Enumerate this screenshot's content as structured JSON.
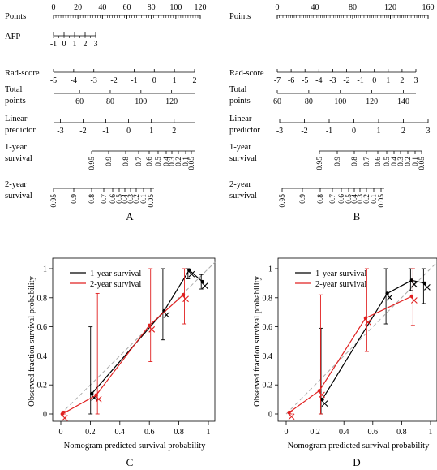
{
  "panel_labels": [
    "A",
    "B",
    "C",
    "D"
  ],
  "chart_data": [
    {
      "panel": "A",
      "type": "nomogram",
      "axes": [
        {
          "label": [
            "Points"
          ],
          "ticks": [
            0,
            20,
            40,
            60,
            80,
            100,
            120
          ]
        },
        {
          "label": [
            "AFP"
          ],
          "ticks": [
            -1,
            0,
            1,
            2,
            3
          ]
        },
        {
          "label": [
            "Rad-score"
          ],
          "ticks": [
            -5,
            -4,
            -3,
            -2,
            -1,
            0,
            1,
            2
          ]
        },
        {
          "label": [
            "Total",
            "points"
          ],
          "ticks": [
            60,
            80,
            100,
            120
          ]
        },
        {
          "label": [
            "Linear",
            "predictor"
          ],
          "ticks": [
            -3,
            -2,
            -1,
            0,
            1,
            2
          ]
        },
        {
          "label": [
            "1-year",
            "survival"
          ],
          "ticks": [
            0.95,
            0.9,
            0.8,
            0.7,
            0.6,
            0.5,
            0.4,
            0.3,
            0.2,
            0.1,
            0.05
          ]
        },
        {
          "label": [
            "2-year",
            "survival"
          ],
          "ticks": [
            0.95,
            0.9,
            0.8,
            0.7,
            0.6,
            0.5,
            0.4,
            0.3,
            0.2,
            0.1,
            0.05
          ]
        }
      ]
    },
    {
      "panel": "B",
      "type": "nomogram",
      "axes": [
        {
          "label": [
            "Points"
          ],
          "ticks": [
            0,
            40,
            80,
            120,
            160
          ]
        },
        {
          "label": [
            "Rad-score"
          ],
          "ticks": [
            -7,
            -6,
            -5,
            -4,
            -3,
            -2,
            -1,
            0,
            1,
            2,
            3
          ]
        },
        {
          "label": [
            "Total",
            "points"
          ],
          "ticks": [
            60,
            80,
            100,
            120,
            140
          ]
        },
        {
          "label": [
            "Linear",
            "predictor"
          ],
          "ticks": [
            -3,
            -2,
            -1,
            0,
            1,
            2,
            3
          ]
        },
        {
          "label": [
            "1-year",
            "survival"
          ],
          "ticks": [
            0.95,
            0.9,
            0.8,
            0.7,
            0.6,
            0.5,
            0.4,
            0.3,
            0.2,
            0.1,
            0.05
          ]
        },
        {
          "label": [
            "2-year",
            "survival"
          ],
          "ticks": [
            0.95,
            0.9,
            0.8,
            0.7,
            0.6,
            0.5,
            0.4,
            0.3,
            0.2,
            0.1,
            0.05
          ]
        }
      ]
    },
    {
      "panel": "C",
      "type": "line",
      "xlabel": "Nomogram predicted survival probability",
      "ylabel": "Observed fraction survival probability",
      "xlim": [
        0,
        1
      ],
      "ylim": [
        0,
        1
      ],
      "xticks": [
        "0",
        "0.2",
        "0.4",
        "0.6",
        "0.8",
        "1"
      ],
      "yticks": [
        "0",
        "0.2",
        "0.4",
        "0.6",
        "0.8",
        "1"
      ],
      "legend": "top-left",
      "series": [
        {
          "name": "1-year survival",
          "color": "#000000",
          "x": [
            0.21,
            0.7,
            0.87,
            0.96
          ],
          "y": [
            0.14,
            0.71,
            0.99,
            0.91
          ],
          "err_low": [
            0.0,
            0.51,
            0.93,
            0.86
          ],
          "err_high": [
            0.6,
            1.0,
            1.0,
            0.96
          ]
        },
        {
          "name": "2-year survival",
          "color": "#e02020",
          "x": [
            0.01,
            0.24,
            0.6,
            0.83
          ],
          "y": [
            0.0,
            0.13,
            0.61,
            0.82
          ],
          "err_low": [
            0.0,
            0.0,
            0.36,
            0.62
          ],
          "err_high": [
            0.02,
            0.83,
            1.0,
            1.0
          ]
        }
      ],
      "reference_line": "dashed diagonal"
    },
    {
      "panel": "D",
      "type": "line",
      "xlabel": "Nomogram predicted survival probability",
      "ylabel": "Observed fraction survival probability",
      "xlim": [
        0,
        1
      ],
      "ylim": [
        0,
        1
      ],
      "xticks": [
        "0",
        "0.2",
        "0.4",
        "0.6",
        "0.8",
        "1"
      ],
      "yticks": [
        "0",
        "0.2",
        "0.4",
        "0.6",
        "0.8",
        "1"
      ],
      "legend": "top-left",
      "series": [
        {
          "name": "1-year survival",
          "color": "#000000",
          "x": [
            0.25,
            0.7,
            0.87,
            0.96
          ],
          "y": [
            0.1,
            0.83,
            0.92,
            0.9
          ],
          "err_low": [
            0.0,
            0.62,
            0.85,
            0.76
          ],
          "err_high": [
            0.59,
            1.0,
            1.0,
            1.0
          ]
        },
        {
          "name": "2-year survival",
          "color": "#e02020",
          "x": [
            0.02,
            0.23,
            0.55,
            0.87
          ],
          "y": [
            0.01,
            0.16,
            0.66,
            0.81
          ],
          "err_low": [
            0.0,
            0.0,
            0.43,
            0.61
          ],
          "err_high": [
            0.02,
            0.82,
            1.0,
            1.0
          ]
        }
      ],
      "reference_line": "dashed diagonal"
    }
  ]
}
